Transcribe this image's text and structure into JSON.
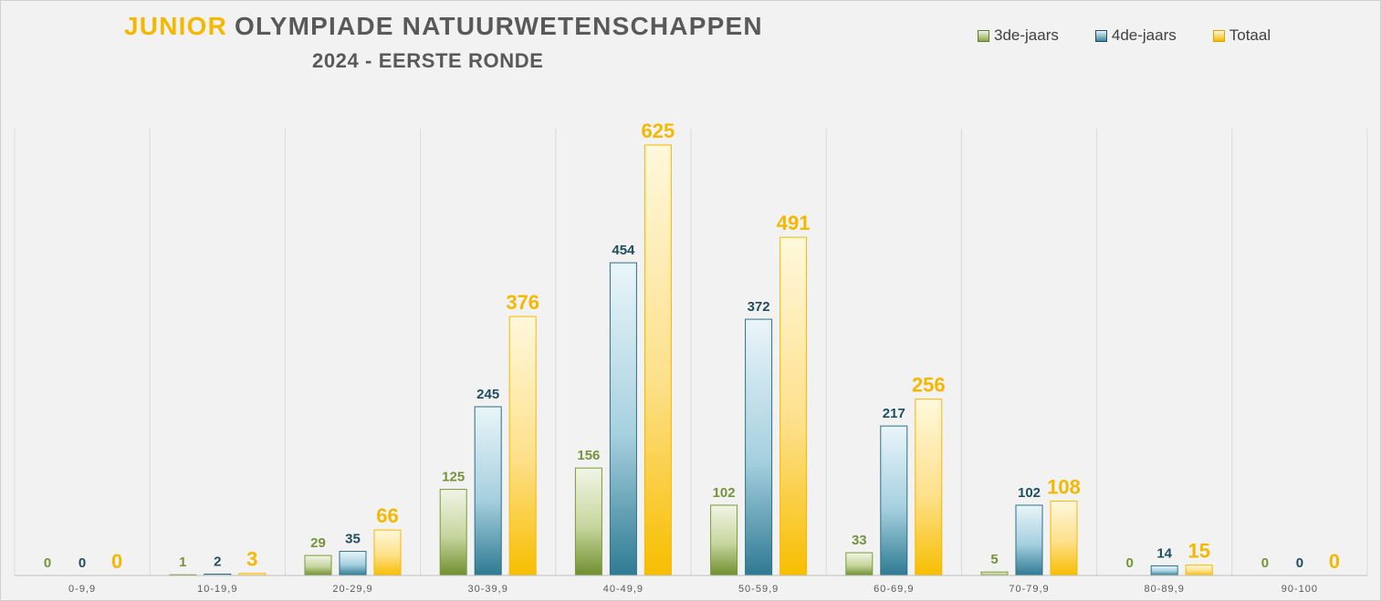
{
  "title": {
    "accent": "JUNIOR",
    "main": "OLYMPIADE NATUURWETENSCHAPPEN",
    "subtitle": "2024 - EERSTE RONDE"
  },
  "legend": [
    {
      "label": "3de-jaars",
      "color": "#7a9a3a"
    },
    {
      "label": "4de-jaars",
      "color": "#2e6f86"
    },
    {
      "label": "Totaal",
      "color": "#f5b800"
    }
  ],
  "chart_data": {
    "type": "bar",
    "title": "JUNIOR OLYMPIADE NATUURWETENSCHAPPEN",
    "subtitle": "2024 - EERSTE RONDE",
    "categories": [
      "0-9,9",
      "10-19,9",
      "20-29,9",
      "30-39,9",
      "40-49,9",
      "50-59,9",
      "60-69,9",
      "70-79,9",
      "80-89,9",
      "90-100"
    ],
    "series": [
      {
        "name": "3de-jaars",
        "values": [
          0,
          1,
          29,
          125,
          156,
          102,
          33,
          5,
          0,
          0
        ],
        "color": "#7a9a3a",
        "label_color": "#76933c"
      },
      {
        "name": "4de-jaars",
        "values": [
          0,
          2,
          35,
          245,
          454,
          372,
          217,
          102,
          14,
          0
        ],
        "color": "#2e6f86",
        "label_color": "#1f4e5f"
      },
      {
        "name": "Totaal",
        "values": [
          0,
          3,
          66,
          376,
          625,
          491,
          256,
          108,
          15,
          0
        ],
        "color": "#f5b800",
        "label_color": "#f5b800"
      }
    ],
    "ylim": [
      0,
      625
    ],
    "legend_position": "top-right",
    "grid": "vertical category separators"
  }
}
